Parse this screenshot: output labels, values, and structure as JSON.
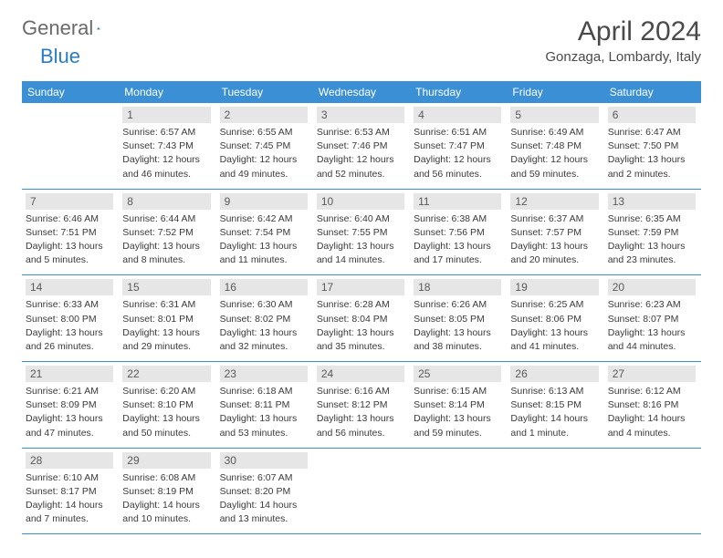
{
  "logo": {
    "text1": "General",
    "text2": "Blue"
  },
  "header": {
    "month_title": "April 2024",
    "location": "Gonzaga, Lombardy, Italy"
  },
  "colors": {
    "header_bg": "#3b8fd4",
    "header_text": "#ffffff",
    "daynum_bg": "#e6e6e6",
    "daynum_text": "#5a5a5a",
    "border": "#3b8fd4",
    "logo_gray": "#6a6a6a",
    "logo_blue": "#2a7dc3",
    "body_text": "#3a3a3a"
  },
  "day_names": [
    "Sunday",
    "Monday",
    "Tuesday",
    "Wednesday",
    "Thursday",
    "Friday",
    "Saturday"
  ],
  "weeks": [
    [
      null,
      {
        "n": "1",
        "sr": "Sunrise: 6:57 AM",
        "ss": "Sunset: 7:43 PM",
        "dl1": "Daylight: 12 hours",
        "dl2": "and 46 minutes."
      },
      {
        "n": "2",
        "sr": "Sunrise: 6:55 AM",
        "ss": "Sunset: 7:45 PM",
        "dl1": "Daylight: 12 hours",
        "dl2": "and 49 minutes."
      },
      {
        "n": "3",
        "sr": "Sunrise: 6:53 AM",
        "ss": "Sunset: 7:46 PM",
        "dl1": "Daylight: 12 hours",
        "dl2": "and 52 minutes."
      },
      {
        "n": "4",
        "sr": "Sunrise: 6:51 AM",
        "ss": "Sunset: 7:47 PM",
        "dl1": "Daylight: 12 hours",
        "dl2": "and 56 minutes."
      },
      {
        "n": "5",
        "sr": "Sunrise: 6:49 AM",
        "ss": "Sunset: 7:48 PM",
        "dl1": "Daylight: 12 hours",
        "dl2": "and 59 minutes."
      },
      {
        "n": "6",
        "sr": "Sunrise: 6:47 AM",
        "ss": "Sunset: 7:50 PM",
        "dl1": "Daylight: 13 hours",
        "dl2": "and 2 minutes."
      }
    ],
    [
      {
        "n": "7",
        "sr": "Sunrise: 6:46 AM",
        "ss": "Sunset: 7:51 PM",
        "dl1": "Daylight: 13 hours",
        "dl2": "and 5 minutes."
      },
      {
        "n": "8",
        "sr": "Sunrise: 6:44 AM",
        "ss": "Sunset: 7:52 PM",
        "dl1": "Daylight: 13 hours",
        "dl2": "and 8 minutes."
      },
      {
        "n": "9",
        "sr": "Sunrise: 6:42 AM",
        "ss": "Sunset: 7:54 PM",
        "dl1": "Daylight: 13 hours",
        "dl2": "and 11 minutes."
      },
      {
        "n": "10",
        "sr": "Sunrise: 6:40 AM",
        "ss": "Sunset: 7:55 PM",
        "dl1": "Daylight: 13 hours",
        "dl2": "and 14 minutes."
      },
      {
        "n": "11",
        "sr": "Sunrise: 6:38 AM",
        "ss": "Sunset: 7:56 PM",
        "dl1": "Daylight: 13 hours",
        "dl2": "and 17 minutes."
      },
      {
        "n": "12",
        "sr": "Sunrise: 6:37 AM",
        "ss": "Sunset: 7:57 PM",
        "dl1": "Daylight: 13 hours",
        "dl2": "and 20 minutes."
      },
      {
        "n": "13",
        "sr": "Sunrise: 6:35 AM",
        "ss": "Sunset: 7:59 PM",
        "dl1": "Daylight: 13 hours",
        "dl2": "and 23 minutes."
      }
    ],
    [
      {
        "n": "14",
        "sr": "Sunrise: 6:33 AM",
        "ss": "Sunset: 8:00 PM",
        "dl1": "Daylight: 13 hours",
        "dl2": "and 26 minutes."
      },
      {
        "n": "15",
        "sr": "Sunrise: 6:31 AM",
        "ss": "Sunset: 8:01 PM",
        "dl1": "Daylight: 13 hours",
        "dl2": "and 29 minutes."
      },
      {
        "n": "16",
        "sr": "Sunrise: 6:30 AM",
        "ss": "Sunset: 8:02 PM",
        "dl1": "Daylight: 13 hours",
        "dl2": "and 32 minutes."
      },
      {
        "n": "17",
        "sr": "Sunrise: 6:28 AM",
        "ss": "Sunset: 8:04 PM",
        "dl1": "Daylight: 13 hours",
        "dl2": "and 35 minutes."
      },
      {
        "n": "18",
        "sr": "Sunrise: 6:26 AM",
        "ss": "Sunset: 8:05 PM",
        "dl1": "Daylight: 13 hours",
        "dl2": "and 38 minutes."
      },
      {
        "n": "19",
        "sr": "Sunrise: 6:25 AM",
        "ss": "Sunset: 8:06 PM",
        "dl1": "Daylight: 13 hours",
        "dl2": "and 41 minutes."
      },
      {
        "n": "20",
        "sr": "Sunrise: 6:23 AM",
        "ss": "Sunset: 8:07 PM",
        "dl1": "Daylight: 13 hours",
        "dl2": "and 44 minutes."
      }
    ],
    [
      {
        "n": "21",
        "sr": "Sunrise: 6:21 AM",
        "ss": "Sunset: 8:09 PM",
        "dl1": "Daylight: 13 hours",
        "dl2": "and 47 minutes."
      },
      {
        "n": "22",
        "sr": "Sunrise: 6:20 AM",
        "ss": "Sunset: 8:10 PM",
        "dl1": "Daylight: 13 hours",
        "dl2": "and 50 minutes."
      },
      {
        "n": "23",
        "sr": "Sunrise: 6:18 AM",
        "ss": "Sunset: 8:11 PM",
        "dl1": "Daylight: 13 hours",
        "dl2": "and 53 minutes."
      },
      {
        "n": "24",
        "sr": "Sunrise: 6:16 AM",
        "ss": "Sunset: 8:12 PM",
        "dl1": "Daylight: 13 hours",
        "dl2": "and 56 minutes."
      },
      {
        "n": "25",
        "sr": "Sunrise: 6:15 AM",
        "ss": "Sunset: 8:14 PM",
        "dl1": "Daylight: 13 hours",
        "dl2": "and 59 minutes."
      },
      {
        "n": "26",
        "sr": "Sunrise: 6:13 AM",
        "ss": "Sunset: 8:15 PM",
        "dl1": "Daylight: 14 hours",
        "dl2": "and 1 minute."
      },
      {
        "n": "27",
        "sr": "Sunrise: 6:12 AM",
        "ss": "Sunset: 8:16 PM",
        "dl1": "Daylight: 14 hours",
        "dl2": "and 4 minutes."
      }
    ],
    [
      {
        "n": "28",
        "sr": "Sunrise: 6:10 AM",
        "ss": "Sunset: 8:17 PM",
        "dl1": "Daylight: 14 hours",
        "dl2": "and 7 minutes."
      },
      {
        "n": "29",
        "sr": "Sunrise: 6:08 AM",
        "ss": "Sunset: 8:19 PM",
        "dl1": "Daylight: 14 hours",
        "dl2": "and 10 minutes."
      },
      {
        "n": "30",
        "sr": "Sunrise: 6:07 AM",
        "ss": "Sunset: 8:20 PM",
        "dl1": "Daylight: 14 hours",
        "dl2": "and 13 minutes."
      },
      null,
      null,
      null,
      null
    ]
  ]
}
